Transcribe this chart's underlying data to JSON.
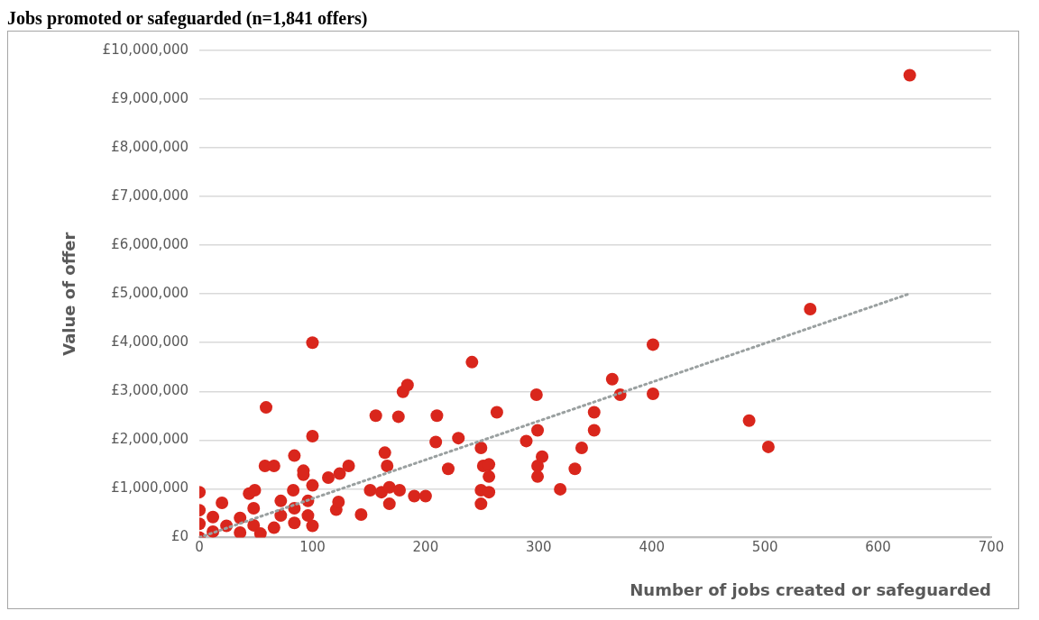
{
  "chart_data": {
    "type": "scatter",
    "title": "Jobs promoted or safeguarded (n=1,841 offers)",
    "xlabel": "Number of jobs created or safeguarded",
    "ylabel": "Value of offer",
    "xlim": [
      0,
      700
    ],
    "xticks": [
      0,
      100,
      200,
      300,
      400,
      500,
      600,
      700
    ],
    "ylim": [
      0,
      10000000
    ],
    "yticks": [
      {
        "value": 0,
        "label": "£0"
      },
      {
        "value": 1000000,
        "label": "£1,000,000"
      },
      {
        "value": 2000000,
        "label": "£2,000,000"
      },
      {
        "value": 3000000,
        "label": "£3,000,000"
      },
      {
        "value": 4000000,
        "label": "£4,000,000"
      },
      {
        "value": 5000000,
        "label": "£5,000,000"
      },
      {
        "value": 6000000,
        "label": "£6,000,000"
      },
      {
        "value": 7000000,
        "label": "£7,000,000"
      },
      {
        "value": 8000000,
        "label": "£8,000,000"
      },
      {
        "value": 9000000,
        "label": "£9,000,000"
      },
      {
        "value": 10000000,
        "label": "£10,000,000"
      }
    ],
    "grid": "y",
    "legend": false,
    "marker": "circle",
    "series": [
      {
        "type": "scatter",
        "color": "#d9261c",
        "x": [
          0,
          0,
          0,
          12,
          12,
          24,
          36,
          36,
          48,
          48,
          72,
          72,
          84,
          84,
          96,
          96,
          0,
          20,
          44,
          49,
          54,
          59,
          58,
          66,
          66,
          84,
          83,
          92,
          92,
          100,
          100,
          100,
          100,
          114,
          121,
          123,
          124,
          132,
          143,
          151,
          156,
          161,
          164,
          166,
          168,
          168,
          176,
          177,
          180,
          184,
          190,
          200,
          209,
          210,
          220,
          229,
          241,
          249,
          249,
          249,
          251,
          256,
          256,
          256,
          263,
          289,
          298,
          299,
          299,
          299,
          303,
          319,
          332,
          338,
          349,
          349,
          365,
          372,
          401,
          401,
          486,
          503,
          540,
          628
        ],
        "values": [
          0,
          280000,
          560000,
          120000,
          420000,
          240000,
          100000,
          400000,
          250000,
          600000,
          450000,
          750000,
          300000,
          600000,
          450000,
          750000,
          930000,
          710000,
          900000,
          970000,
          80000,
          2670000,
          1470000,
          1470000,
          200000,
          1680000,
          970000,
          1370000,
          1290000,
          4000000,
          2080000,
          1070000,
          240000,
          1230000,
          570000,
          730000,
          1310000,
          1470000,
          470000,
          970000,
          2500000,
          930000,
          1740000,
          1470000,
          1030000,
          690000,
          2480000,
          970000,
          2990000,
          3130000,
          850000,
          850000,
          1960000,
          2500000,
          1410000,
          2040000,
          3600000,
          1840000,
          970000,
          690000,
          1470000,
          1500000,
          1250000,
          930000,
          2570000,
          1980000,
          2930000,
          2200000,
          1470000,
          1250000,
          1660000,
          990000,
          1410000,
          1840000,
          2200000,
          2570000,
          3250000,
          2930000,
          3960000,
          2950000,
          2400000,
          1860000,
          4690000,
          9490000
        ]
      },
      {
        "type": "line",
        "color": "#9aa0a0",
        "line_style": "dotted",
        "marker": "none",
        "x": [
          0,
          626
        ],
        "values": [
          0,
          4990000
        ]
      }
    ]
  }
}
